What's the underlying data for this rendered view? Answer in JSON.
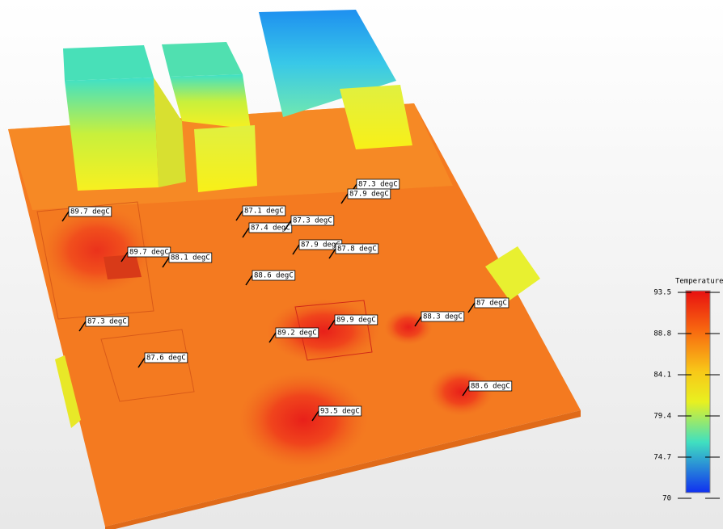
{
  "probes": [
    "89.7 degC",
    "87.1 degC",
    "87.3 degC",
    "87.9 degC",
    "87.4 degC",
    "87.3 degC",
    "89.7 degC",
    "88.1 degC",
    "87.9 degC",
    "87.8 degC",
    "88.6 degC",
    "87.3 degC",
    "89.9 degC",
    "89.2 degC",
    "88.3 degC",
    "87 degC",
    "87.6 degC",
    "88.6 degC",
    "93.5 degC"
  ],
  "legend": {
    "title": "Temperature (degC)",
    "ticks": [
      "93.5",
      "88.8",
      "84.1",
      "79.4",
      "74.7",
      "70"
    ]
  }
}
